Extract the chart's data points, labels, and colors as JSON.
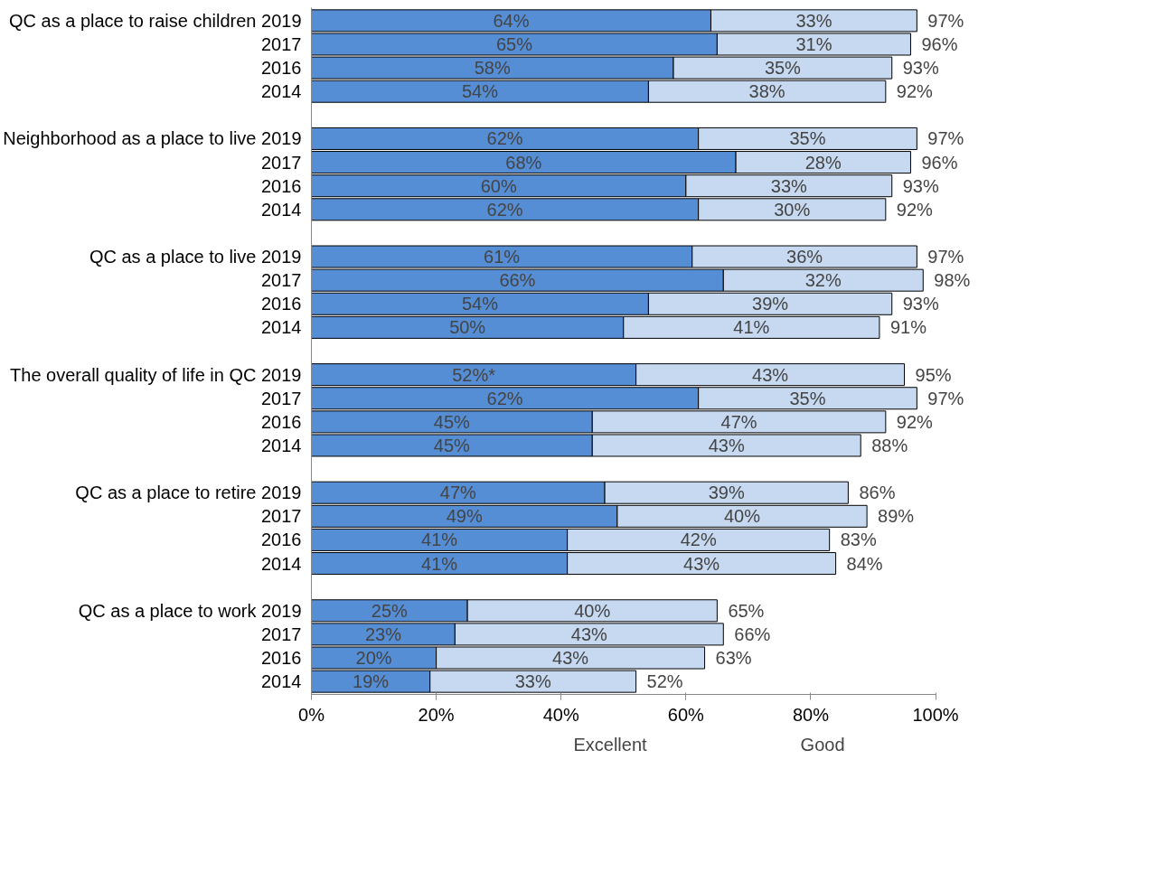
{
  "chart_data": {
    "type": "bar",
    "orientation": "horizontal",
    "stacked": true,
    "categories": [
      "QC as a place to raise children 2019",
      "2017",
      "2016",
      "2014",
      null,
      "Neighborhood as a place to live 2019",
      "2017",
      "2016",
      "2014",
      null,
      "QC as a place to live 2019",
      "2017",
      "2016",
      "2014",
      null,
      "The overall quality of life in QC 2019",
      "2017",
      "2016",
      "2014",
      null,
      "QC as a place to retire 2019",
      "2017",
      "2016",
      "2014",
      null,
      "QC as a place to work 2019",
      "2017",
      "2016",
      "2014"
    ],
    "series": [
      {
        "name": "Excellent",
        "color": "#558ed5",
        "values": [
          64,
          65,
          58,
          54,
          null,
          62,
          68,
          60,
          62,
          null,
          61,
          66,
          54,
          50,
          null,
          52,
          62,
          45,
          45,
          null,
          47,
          49,
          41,
          41,
          null,
          25,
          23,
          20,
          19
        ],
        "value_labels": [
          "64%",
          "65%",
          "58%",
          "54%",
          null,
          "62%",
          "68%",
          "60%",
          "62%",
          null,
          "61%",
          "66%",
          "54%",
          "50%",
          null,
          "52%*",
          "62%",
          "45%",
          "45%",
          null,
          "47%",
          "49%",
          "41%",
          "41%",
          null,
          "25%",
          "23%",
          "20%",
          "19%"
        ]
      },
      {
        "name": "Good",
        "color": "#c6d9f1",
        "values": [
          33,
          31,
          35,
          38,
          null,
          35,
          28,
          33,
          30,
          null,
          36,
          32,
          39,
          41,
          null,
          43,
          35,
          47,
          43,
          null,
          39,
          40,
          42,
          43,
          null,
          40,
          43,
          43,
          33
        ],
        "value_labels": [
          "33%",
          "31%",
          "35%",
          "38%",
          null,
          "35%",
          "28%",
          "33%",
          "30%",
          null,
          "36%",
          "32%",
          "39%",
          "41%",
          null,
          "43%",
          "35%",
          "47%",
          "43%",
          null,
          "39%",
          "40%",
          "42%",
          "43%",
          null,
          "40%",
          "43%",
          "43%",
          "33%"
        ]
      }
    ],
    "totals": [
      "97%",
      "96%",
      "93%",
      "92%",
      null,
      "97%",
      "96%",
      "93%",
      "92%",
      null,
      "97%",
      "98%",
      "93%",
      "91%",
      null,
      "95%",
      "97%",
      "92%",
      "88%",
      null,
      "86%",
      "89%",
      "83%",
      "84%",
      null,
      "65%",
      "66%",
      "63%",
      "52%"
    ],
    "xlim": [
      0,
      100
    ],
    "xticks": [
      {
        "value": 0,
        "label": "0%"
      },
      {
        "value": 20,
        "label": "20%"
      },
      {
        "value": 40,
        "label": "40%"
      },
      {
        "value": 60,
        "label": "60%"
      },
      {
        "value": 80,
        "label": "80%"
      },
      {
        "value": 100,
        "label": "100%"
      }
    ],
    "grid": false,
    "legend": "bottom"
  }
}
